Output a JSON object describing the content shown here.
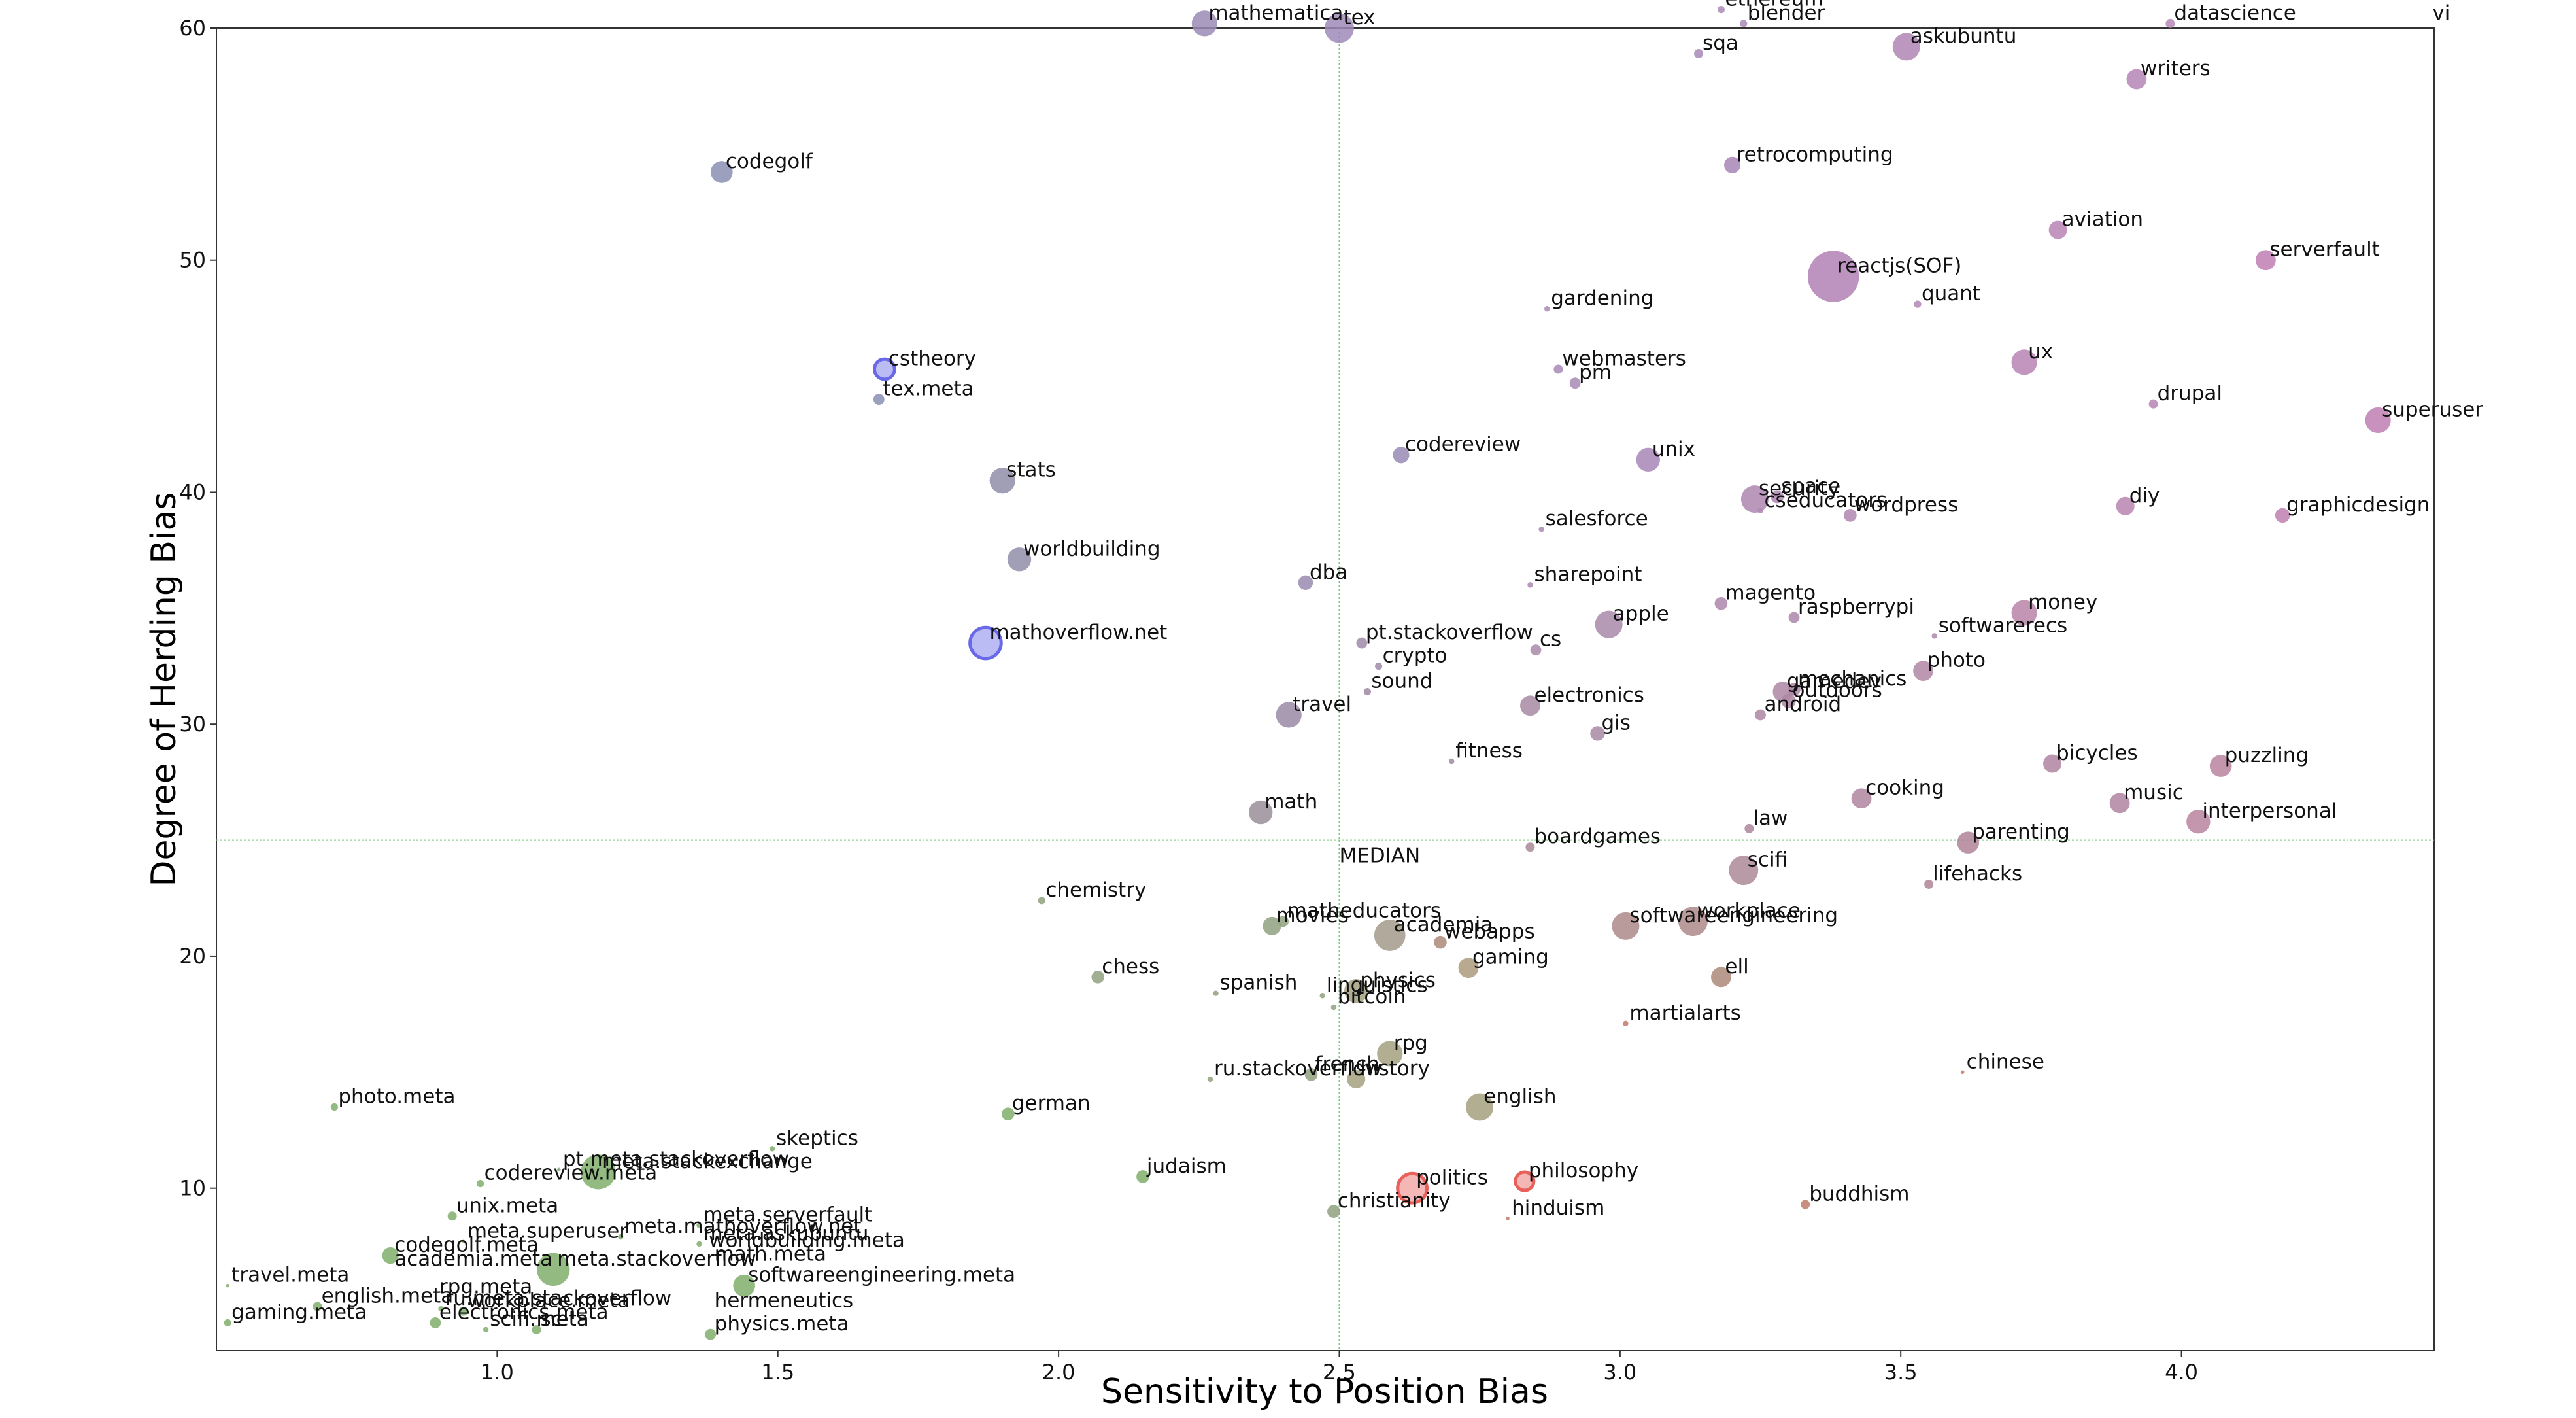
{
  "chart_data": {
    "type": "scatter",
    "xlabel": "Sensitivity to Position Bias",
    "ylabel": "Degree of Herding Bias",
    "xlim": [
      0.5,
      4.45
    ],
    "ylim": [
      3.0,
      60.0
    ],
    "xticks": [
      1.0,
      1.5,
      2.0,
      2.5,
      3.0,
      3.5,
      4.0
    ],
    "yticks": [
      10,
      20,
      30,
      40,
      50,
      60
    ],
    "median": {
      "x": 2.5,
      "y": 25.0,
      "label": "MEDIAN"
    },
    "grid": false,
    "colors": {
      "high_herding": "#b07aab",
      "low_herding": "#7fae6b",
      "highlight_red": "#e8605a",
      "highlight_blue": "#6a6ae8",
      "median_line": "#7fc97f"
    },
    "points": [
      {
        "label": "mathematica",
        "x": 2.26,
        "y": 60.2,
        "size": 14,
        "color": "#9b8ab5"
      },
      {
        "label": "tex",
        "x": 2.5,
        "y": 60.0,
        "size": 16,
        "color": "#9f8ab8"
      },
      {
        "label": "ethereum",
        "x": 3.18,
        "y": 60.8,
        "size": 4,
        "color": "#a889b6"
      },
      {
        "label": "sqa",
        "x": 3.14,
        "y": 58.9,
        "size": 5,
        "color": "#a889b6"
      },
      {
        "label": "blender",
        "x": 3.22,
        "y": 60.2,
        "size": 4,
        "color": "#aa89b6"
      },
      {
        "label": "askubuntu",
        "x": 3.51,
        "y": 59.2,
        "size": 15,
        "color": "#b086b6"
      },
      {
        "label": "datascience",
        "x": 3.98,
        "y": 60.2,
        "size": 5,
        "color": "#b888b6"
      },
      {
        "label": "vi",
        "x": 4.44,
        "y": 60.2,
        "size": 0,
        "color": "#b888b6"
      },
      {
        "label": "writers",
        "x": 3.92,
        "y": 57.8,
        "size": 11,
        "color": "#b585b5"
      },
      {
        "label": "codegolf",
        "x": 1.4,
        "y": 53.8,
        "size": 12,
        "color": "#8a8fb3"
      },
      {
        "label": "retrocomputing",
        "x": 3.2,
        "y": 54.1,
        "size": 9,
        "color": "#a886b6"
      },
      {
        "label": "aviation",
        "x": 3.78,
        "y": 51.3,
        "size": 10,
        "color": "#b884b5"
      },
      {
        "label": "serverfault",
        "x": 4.15,
        "y": 50.0,
        "size": 11,
        "color": "#bf7fb3"
      },
      {
        "label": "reactjs(SOF)",
        "x": 3.38,
        "y": 49.3,
        "size": 28,
        "color": "#b181b5"
      },
      {
        "label": "quant",
        "x": 3.53,
        "y": 48.1,
        "size": 4,
        "color": "#b186b5"
      },
      {
        "label": "gardening",
        "x": 2.87,
        "y": 47.9,
        "size": 3,
        "color": "#a88ab5"
      },
      {
        "label": "cstheory",
        "x": 1.69,
        "y": 45.3,
        "size": 11,
        "color": "#6a6ae8",
        "ring": true
      },
      {
        "label": "tex.meta",
        "x": 1.68,
        "y": 44.0,
        "size": 6,
        "color": "#8a8fb3"
      },
      {
        "label": "webmasters",
        "x": 2.89,
        "y": 45.3,
        "size": 5,
        "color": "#a88ab5"
      },
      {
        "label": "pm",
        "x": 2.92,
        "y": 44.7,
        "size": 6,
        "color": "#a88ab5"
      },
      {
        "label": "ux",
        "x": 3.72,
        "y": 45.6,
        "size": 14,
        "color": "#b884b5"
      },
      {
        "label": "drupal",
        "x": 3.95,
        "y": 43.8,
        "size": 5,
        "color": "#b884b5"
      },
      {
        "label": "superuser",
        "x": 4.35,
        "y": 43.1,
        "size": 14,
        "color": "#bf7fb3"
      },
      {
        "label": "codereview",
        "x": 2.61,
        "y": 41.6,
        "size": 9,
        "color": "#998ab5"
      },
      {
        "label": "unix",
        "x": 3.05,
        "y": 41.4,
        "size": 13,
        "color": "#a886b6"
      },
      {
        "label": "stats",
        "x": 1.9,
        "y": 40.5,
        "size": 14,
        "color": "#8f8ea8"
      },
      {
        "label": "security",
        "x": 3.24,
        "y": 39.7,
        "size": 15,
        "color": "#ad86b0"
      },
      {
        "label": "space",
        "x": 3.28,
        "y": 39.8,
        "size": 7,
        "color": "#ad86b0"
      },
      {
        "label": "cseducators",
        "x": 3.25,
        "y": 39.2,
        "size": 3,
        "color": "#ad86b0"
      },
      {
        "label": "wordpress",
        "x": 3.41,
        "y": 39.0,
        "size": 7,
        "color": "#b086b1"
      },
      {
        "label": "diy",
        "x": 3.9,
        "y": 39.4,
        "size": 10,
        "color": "#b884b0"
      },
      {
        "label": "graphicdesign",
        "x": 4.18,
        "y": 39.0,
        "size": 8,
        "color": "#bf7fb0"
      },
      {
        "label": "salesforce",
        "x": 2.86,
        "y": 38.4,
        "size": 3,
        "color": "#a88ab0"
      },
      {
        "label": "worldbuilding",
        "x": 1.93,
        "y": 37.1,
        "size": 13,
        "color": "#8f8ea8"
      },
      {
        "label": "dba",
        "x": 2.44,
        "y": 36.1,
        "size": 8,
        "color": "#998ab0"
      },
      {
        "label": "sharepoint",
        "x": 2.84,
        "y": 36.0,
        "size": 3,
        "color": "#a88ab0"
      },
      {
        "label": "magento",
        "x": 3.18,
        "y": 35.2,
        "size": 7,
        "color": "#ad86ac"
      },
      {
        "label": "money",
        "x": 3.72,
        "y": 34.8,
        "size": 14,
        "color": "#b884a8"
      },
      {
        "label": "apple",
        "x": 2.98,
        "y": 34.3,
        "size": 15,
        "color": "#a88aa8"
      },
      {
        "label": "raspberrypi",
        "x": 3.31,
        "y": 34.6,
        "size": 6,
        "color": "#ad86aa"
      },
      {
        "label": "softwarerecs",
        "x": 3.56,
        "y": 33.8,
        "size": 3,
        "color": "#b086aa"
      },
      {
        "label": "mathoverflow.net",
        "x": 1.87,
        "y": 33.5,
        "size": 17,
        "color": "#6a6ae8",
        "ring": true
      },
      {
        "label": "pt.stackoverflow",
        "x": 2.54,
        "y": 33.5,
        "size": 6,
        "color": "#a08aa8"
      },
      {
        "label": "cs",
        "x": 2.85,
        "y": 33.2,
        "size": 6,
        "color": "#a88aa8"
      },
      {
        "label": "photo",
        "x": 3.54,
        "y": 32.3,
        "size": 11,
        "color": "#b086a5"
      },
      {
        "label": "crypto",
        "x": 2.57,
        "y": 32.5,
        "size": 4,
        "color": "#a08aa8"
      },
      {
        "label": "mechanics",
        "x": 3.31,
        "y": 31.5,
        "size": 7,
        "color": "#ad86a5"
      },
      {
        "label": "gamedev",
        "x": 3.29,
        "y": 31.4,
        "size": 11,
        "color": "#ad86a5"
      },
      {
        "label": "electronics",
        "x": 2.84,
        "y": 30.8,
        "size": 11,
        "color": "#a88aa5"
      },
      {
        "label": "sound",
        "x": 2.55,
        "y": 31.4,
        "size": 4,
        "color": "#a08aa5"
      },
      {
        "label": "travel",
        "x": 2.41,
        "y": 30.4,
        "size": 14,
        "color": "#998aa5"
      },
      {
        "label": "outdoors",
        "x": 3.3,
        "y": 31.0,
        "size": 8,
        "color": "#ad86a5"
      },
      {
        "label": "android",
        "x": 3.25,
        "y": 30.4,
        "size": 6,
        "color": "#ad86a5"
      },
      {
        "label": "gis",
        "x": 2.96,
        "y": 29.6,
        "size": 8,
        "color": "#a88aa5"
      },
      {
        "label": "fitness",
        "x": 2.7,
        "y": 28.4,
        "size": 3,
        "color": "#a08aa5"
      },
      {
        "label": "bicycles",
        "x": 3.77,
        "y": 28.3,
        "size": 10,
        "color": "#b084a0"
      },
      {
        "label": "puzzling",
        "x": 4.07,
        "y": 28.2,
        "size": 12,
        "color": "#b884a0"
      },
      {
        "label": "cooking",
        "x": 3.43,
        "y": 26.8,
        "size": 11,
        "color": "#b086a0"
      },
      {
        "label": "music",
        "x": 3.89,
        "y": 26.6,
        "size": 11,
        "color": "#b084a0"
      },
      {
        "label": "math",
        "x": 2.36,
        "y": 26.2,
        "size": 13,
        "color": "#9a8e9a"
      },
      {
        "label": "interpersonal",
        "x": 4.03,
        "y": 25.8,
        "size": 13,
        "color": "#b884a0"
      },
      {
        "label": "law",
        "x": 3.23,
        "y": 25.5,
        "size": 5,
        "color": "#ad869c"
      },
      {
        "label": "parenting",
        "x": 3.62,
        "y": 24.9,
        "size": 12,
        "color": "#b08498"
      },
      {
        "label": "boardgames",
        "x": 2.84,
        "y": 24.7,
        "size": 5,
        "color": "#a88a98"
      },
      {
        "label": "scifi",
        "x": 3.22,
        "y": 23.7,
        "size": 16,
        "color": "#ad8a98"
      },
      {
        "label": "lifehacks",
        "x": 3.55,
        "y": 23.1,
        "size": 5,
        "color": "#b08494"
      },
      {
        "label": "chemistry",
        "x": 1.97,
        "y": 22.4,
        "size": 4,
        "color": "#8fa07f"
      },
      {
        "label": "matheducators",
        "x": 2.4,
        "y": 21.5,
        "size": 6,
        "color": "#8fa07f"
      },
      {
        "label": "movies",
        "x": 2.38,
        "y": 21.3,
        "size": 10,
        "color": "#8fa07f"
      },
      {
        "label": "academia",
        "x": 2.59,
        "y": 20.9,
        "size": 17,
        "color": "#a39a8a"
      },
      {
        "label": "workplace",
        "x": 3.13,
        "y": 21.5,
        "size": 16,
        "color": "#ad8a8a"
      },
      {
        "label": "softwareengineering",
        "x": 3.01,
        "y": 21.3,
        "size": 15,
        "color": "#ad8a8a"
      },
      {
        "label": "webapps",
        "x": 2.68,
        "y": 20.6,
        "size": 7,
        "color": "#ad8a7a"
      },
      {
        "label": "gaming",
        "x": 2.73,
        "y": 19.5,
        "size": 11,
        "color": "#ad9a7a"
      },
      {
        "label": "ell",
        "x": 3.18,
        "y": 19.1,
        "size": 11,
        "color": "#ad8a7a"
      },
      {
        "label": "chess",
        "x": 2.07,
        "y": 19.1,
        "size": 7,
        "color": "#8fa07f"
      },
      {
        "label": "physics",
        "x": 2.53,
        "y": 18.5,
        "size": 13,
        "color": "#a3a07f"
      },
      {
        "label": "spanish",
        "x": 2.28,
        "y": 18.4,
        "size": 3,
        "color": "#8fa07f"
      },
      {
        "label": "linguistics",
        "x": 2.47,
        "y": 18.3,
        "size": 3,
        "color": "#8fa07f"
      },
      {
        "label": "bitcoin",
        "x": 2.49,
        "y": 17.8,
        "size": 3,
        "color": "#8fa07f"
      },
      {
        "label": "martialarts",
        "x": 3.01,
        "y": 17.1,
        "size": 3,
        "color": "#c07a6a"
      },
      {
        "label": "rpg",
        "x": 2.59,
        "y": 15.8,
        "size": 14,
        "color": "#a3a07f"
      },
      {
        "label": "ru.stackoverflow",
        "x": 2.27,
        "y": 14.7,
        "size": 3,
        "color": "#8fa07f"
      },
      {
        "label": "french",
        "x": 2.45,
        "y": 14.9,
        "size": 7,
        "color": "#8fa07f"
      },
      {
        "label": "history",
        "x": 2.53,
        "y": 14.7,
        "size": 10,
        "color": "#a3a07f"
      },
      {
        "label": "chinese",
        "x": 3.61,
        "y": 15.0,
        "size": 2,
        "color": "#c07a6a"
      },
      {
        "label": "photo.meta",
        "x": 0.71,
        "y": 13.5,
        "size": 4,
        "color": "#7fae6b"
      },
      {
        "label": "german",
        "x": 1.91,
        "y": 13.2,
        "size": 7,
        "color": "#7fae6b"
      },
      {
        "label": "english",
        "x": 2.75,
        "y": 13.5,
        "size": 15,
        "color": "#a3a07f"
      },
      {
        "label": "skeptics",
        "x": 1.49,
        "y": 11.7,
        "size": 3,
        "color": "#7fae6b"
      },
      {
        "label": "pt.meta.stackoverflow",
        "x": 1.11,
        "y": 10.8,
        "size": 2,
        "color": "#7fae6b"
      },
      {
        "label": "meta.stackexchange",
        "x": 1.18,
        "y": 10.7,
        "size": 19,
        "color": "#7fae6b"
      },
      {
        "label": "judaism",
        "x": 2.15,
        "y": 10.5,
        "size": 7,
        "color": "#7fae6b"
      },
      {
        "label": "politics",
        "x": 2.63,
        "y": 10.0,
        "size": 16,
        "color": "#e8605a",
        "ring": true
      },
      {
        "label": "philosophy",
        "x": 2.83,
        "y": 10.3,
        "size": 10,
        "color": "#e8605a",
        "ring": true
      },
      {
        "label": "codereview.meta",
        "x": 0.97,
        "y": 10.2,
        "size": 4,
        "color": "#7fae6b"
      },
      {
        "label": "unix.meta",
        "x": 0.92,
        "y": 8.8,
        "size": 5,
        "color": "#7fae6b"
      },
      {
        "label": "meta.mathoverflow.net",
        "x": 1.22,
        "y": 7.9,
        "size": 3,
        "color": "#7fae6b"
      },
      {
        "label": "meta.serverfault",
        "x": 1.36,
        "y": 8.4,
        "size": 3,
        "color": "#7fae6b"
      },
      {
        "label": "christianity",
        "x": 2.49,
        "y": 9.0,
        "size": 7,
        "color": "#8fa07f"
      },
      {
        "label": "hinduism",
        "x": 2.8,
        "y": 8.7,
        "size": 2,
        "color": "#c07a6a"
      },
      {
        "label": "buddhism",
        "x": 3.33,
        "y": 9.3,
        "size": 5,
        "color": "#c07a6a"
      },
      {
        "label": "meta.superuser",
        "x": 0.94,
        "y": 7.7,
        "size": 2,
        "color": "#7fae6b"
      },
      {
        "label": "meta.askubuntu",
        "x": 1.36,
        "y": 7.6,
        "size": 3,
        "color": "#7fae6b"
      },
      {
        "label": "worldbuilding.meta",
        "x": 1.37,
        "y": 7.3,
        "size": 0,
        "color": "#7fae6b"
      },
      {
        "label": "codegolf.meta",
        "x": 0.81,
        "y": 7.1,
        "size": 9,
        "color": "#7fae6b"
      },
      {
        "label": "travel.meta",
        "x": 0.52,
        "y": 5.8,
        "size": 2,
        "color": "#7fae6b"
      },
      {
        "label": "academia.meta",
        "x": 0.81,
        "y": 6.5,
        "size": 0,
        "color": "#7fae6b"
      },
      {
        "label": "meta.stackoverflow",
        "x": 1.1,
        "y": 6.5,
        "size": 18,
        "color": "#7fae6b"
      },
      {
        "label": "math.meta",
        "x": 1.38,
        "y": 6.7,
        "size": 0,
        "color": "#7fae6b"
      },
      {
        "label": "rpg.meta",
        "x": 0.89,
        "y": 5.3,
        "size": 0,
        "color": "#7fae6b"
      },
      {
        "label": "softwareengineering.meta",
        "x": 1.44,
        "y": 5.8,
        "size": 12,
        "color": "#7fae6b"
      },
      {
        "label": "ru.meta.stackoverflow",
        "x": 0.9,
        "y": 4.8,
        "size": 3,
        "color": "#7fae6b"
      },
      {
        "label": "workplace.meta",
        "x": 0.94,
        "y": 4.7,
        "size": 5,
        "color": "#7fae6b"
      },
      {
        "label": "english.meta",
        "x": 0.68,
        "y": 4.9,
        "size": 5,
        "color": "#7fae6b"
      },
      {
        "label": "hermeneutics",
        "x": 1.38,
        "y": 4.7,
        "size": 0,
        "color": "#7fae6b"
      },
      {
        "label": "gaming.meta",
        "x": 0.52,
        "y": 4.2,
        "size": 4,
        "color": "#7fae6b"
      },
      {
        "label": "electronics.meta",
        "x": 0.89,
        "y": 4.2,
        "size": 6,
        "color": "#7fae6b"
      },
      {
        "label": "scifi.meta",
        "x": 0.98,
        "y": 3.9,
        "size": 3,
        "color": "#7fae6b"
      },
      {
        "label": "physics.meta",
        "x": 1.38,
        "y": 3.7,
        "size": 6,
        "color": "#7fae6b"
      },
      {
        "label": "sc",
        "x": 1.07,
        "y": 3.9,
        "size": 5,
        "color": "#7fae6b"
      }
    ]
  }
}
